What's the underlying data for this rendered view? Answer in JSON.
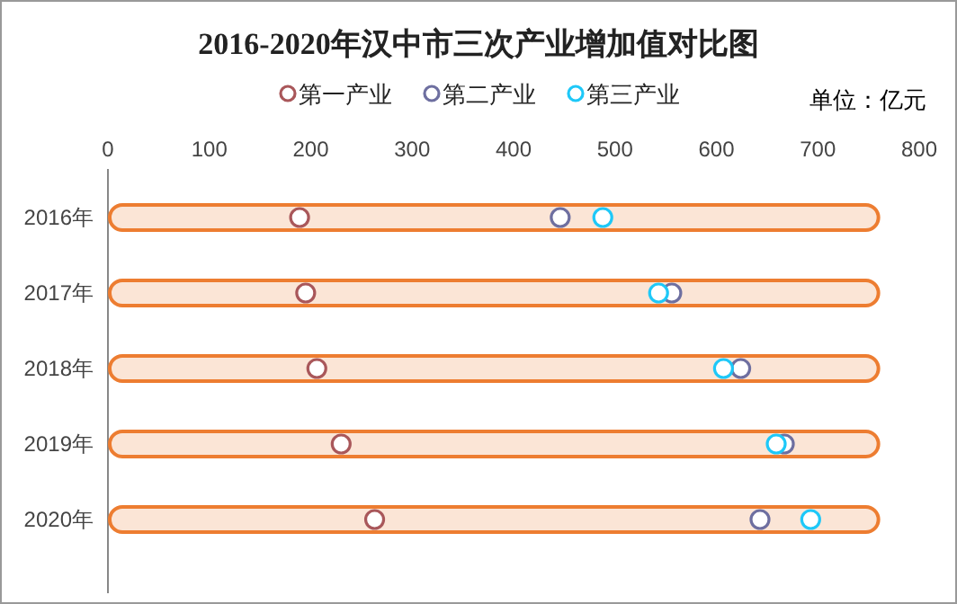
{
  "chart_data": {
    "type": "scatter",
    "orientation": "horizontal",
    "title": "2016-2020年汉中市三次产业增加值对比图",
    "annotations": [
      "单位：亿元"
    ],
    "categories": [
      "2016年",
      "2017年",
      "2018年",
      "2019年",
      "2020年"
    ],
    "xlim": [
      0,
      800
    ],
    "xticks": [
      0,
      100,
      200,
      300,
      400,
      500,
      600,
      700,
      800
    ],
    "grid": false,
    "legend": "top",
    "marker": "circle",
    "series": [
      {
        "type": "bar",
        "color": "#fbe5d6",
        "values": [
          758,
          758,
          758,
          758,
          758
        ]
      },
      {
        "name": "第一产业",
        "color": "#a9575a",
        "values": [
          189,
          195,
          206,
          230,
          263
        ]
      },
      {
        "name": "第二产业",
        "color": "#6e6fa0",
        "values": [
          446,
          556,
          624,
          667,
          643
        ]
      },
      {
        "name": "第三产业",
        "color": "#1ec8f8",
        "values": [
          488,
          543,
          607,
          659,
          693
        ]
      }
    ]
  }
}
